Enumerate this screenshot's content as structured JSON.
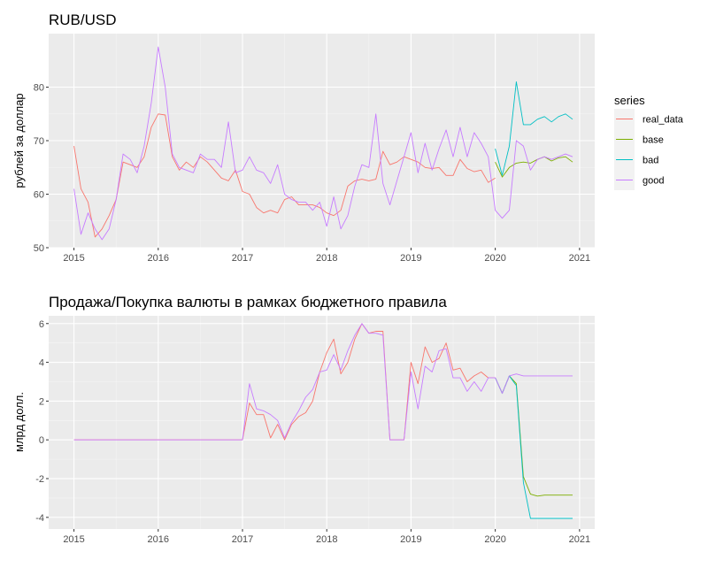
{
  "chart_data": [
    {
      "type": "line",
      "title": "RUB/USD",
      "xlabel": "",
      "ylabel": "рублей за доллар",
      "xlim": [
        2014.7,
        2021.18
      ],
      "ylim": [
        50,
        90
      ],
      "xticks": [
        2015,
        2016,
        2017,
        2018,
        2019,
        2020,
        2021
      ],
      "yticks": [
        50,
        60,
        70,
        80
      ],
      "grid": true,
      "legend": {
        "title": "series",
        "placement": "right",
        "entries": [
          {
            "label": "real_data",
            "color": "#F8766D"
          },
          {
            "label": "base",
            "color": "#7CAE00"
          },
          {
            "label": "bad",
            "color": "#00BFC4"
          },
          {
            "label": "good",
            "color": "#C77CFF"
          }
        ]
      },
      "series": [
        {
          "name": "real_data",
          "color": "#F8766D",
          "x": [
            2015.0,
            2015.083,
            2015.167,
            2015.25,
            2015.333,
            2015.417,
            2015.5,
            2015.583,
            2015.667,
            2015.75,
            2015.833,
            2015.917,
            2016.0,
            2016.083,
            2016.167,
            2016.25,
            2016.333,
            2016.417,
            2016.5,
            2016.583,
            2016.667,
            2016.75,
            2016.833,
            2016.917,
            2017.0,
            2017.083,
            2017.167,
            2017.25,
            2017.333,
            2017.417,
            2017.5,
            2017.583,
            2017.667,
            2017.75,
            2017.833,
            2017.917,
            2018.0,
            2018.083,
            2018.167,
            2018.25,
            2018.333,
            2018.417,
            2018.5,
            2018.583,
            2018.667,
            2018.75,
            2018.833,
            2018.917,
            2019.0,
            2019.083,
            2019.167,
            2019.25,
            2019.333,
            2019.417,
            2019.5,
            2019.583,
            2019.667,
            2019.75,
            2019.833,
            2019.917,
            2020.0
          ],
          "y": [
            69,
            61,
            58.5,
            52,
            53.5,
            56,
            59,
            66,
            65.5,
            65,
            67,
            72.5,
            75,
            74.8,
            67,
            64.5,
            66,
            65,
            67,
            66,
            64.5,
            63,
            62.5,
            64.5,
            60.5,
            60,
            57.5,
            56.5,
            57,
            56.5,
            59,
            59.5,
            58,
            58,
            58,
            57.5,
            56.5,
            56,
            57,
            61.5,
            62.5,
            62.8,
            62.5,
            62.8,
            68,
            65.5,
            66,
            67,
            66.5,
            66,
            65,
            64.8,
            65,
            63.5,
            63.5,
            66.5,
            64.8,
            64.2,
            64.5,
            62.2,
            63
          ]
        },
        {
          "name": "base",
          "color": "#7CAE00",
          "x": [
            2020.0,
            2020.083,
            2020.167,
            2020.25,
            2020.333,
            2020.417,
            2020.5,
            2020.583,
            2020.667,
            2020.75,
            2020.833,
            2020.917
          ],
          "y": [
            66,
            63.2,
            65,
            65.8,
            66,
            65.8,
            66.5,
            67,
            66.2,
            66.8,
            67,
            66
          ]
        },
        {
          "name": "bad",
          "color": "#00BFC4",
          "x": [
            2020.0,
            2020.083,
            2020.167,
            2020.25,
            2020.333,
            2020.417,
            2020.5,
            2020.583,
            2020.667,
            2020.75,
            2020.833,
            2020.917
          ],
          "y": [
            68.5,
            63.5,
            69,
            81,
            73,
            73,
            74,
            74.5,
            73.5,
            74.5,
            75,
            74
          ]
        },
        {
          "name": "good",
          "color": "#C77CFF",
          "x": [
            2015.0,
            2015.083,
            2015.167,
            2015.25,
            2015.333,
            2015.417,
            2015.5,
            2015.583,
            2015.667,
            2015.75,
            2015.833,
            2015.917,
            2016.0,
            2016.083,
            2016.167,
            2016.25,
            2016.333,
            2016.417,
            2016.5,
            2016.583,
            2016.667,
            2016.75,
            2016.833,
            2016.917,
            2017.0,
            2017.083,
            2017.167,
            2017.25,
            2017.333,
            2017.417,
            2017.5,
            2017.583,
            2017.667,
            2017.75,
            2017.833,
            2017.917,
            2018.0,
            2018.083,
            2018.167,
            2018.25,
            2018.333,
            2018.417,
            2018.5,
            2018.583,
            2018.667,
            2018.75,
            2018.833,
            2018.917,
            2019.0,
            2019.083,
            2019.167,
            2019.25,
            2019.333,
            2019.417,
            2019.5,
            2019.583,
            2019.667,
            2019.75,
            2019.833,
            2019.917,
            2020.0,
            2020.083,
            2020.167,
            2020.25,
            2020.333,
            2020.417,
            2020.5,
            2020.583,
            2020.667,
            2020.75,
            2020.833,
            2020.917
          ],
          "y": [
            61,
            52.5,
            56.5,
            53.5,
            51.5,
            53.5,
            59,
            67.5,
            66.5,
            64,
            69,
            77,
            87.5,
            80,
            67.5,
            65,
            64.5,
            64,
            67.5,
            66.5,
            66.5,
            65,
            73.5,
            64,
            64.5,
            67,
            64.5,
            64,
            62,
            65.5,
            60,
            59,
            58.5,
            58.5,
            57,
            58.5,
            54,
            59.5,
            53.5,
            56,
            61.5,
            65.5,
            65,
            75,
            62,
            58,
            62.5,
            67,
            71.5,
            64,
            69.5,
            64.5,
            68.5,
            72,
            67,
            72.5,
            67,
            71.5,
            69.5,
            67,
            57,
            55.5,
            57,
            70,
            69,
            64.5,
            66.5,
            67,
            66.5,
            67,
            67.5,
            67
          ]
        }
      ]
    },
    {
      "type": "line",
      "title": "Продажа/Покупка валюты в рамках бюджетного правила",
      "xlabel": "",
      "ylabel": "млрд долл.",
      "xlim": [
        2014.7,
        2021.18
      ],
      "ylim": [
        -4.6,
        6.4
      ],
      "xticks": [
        2015,
        2016,
        2017,
        2018,
        2019,
        2020,
        2021
      ],
      "yticks": [
        -4,
        -2,
        0,
        2,
        4,
        6
      ],
      "grid": true,
      "series": [
        {
          "name": "real_data",
          "color": "#F8766D",
          "x": [
            2015.0,
            2016.0,
            2017.0,
            2017.083,
            2017.167,
            2017.25,
            2017.333,
            2017.417,
            2017.5,
            2017.583,
            2017.667,
            2017.75,
            2017.833,
            2017.917,
            2018.0,
            2018.083,
            2018.167,
            2018.25,
            2018.333,
            2018.417,
            2018.5,
            2018.583,
            2018.667,
            2018.75,
            2018.833,
            2018.917,
            2019.0,
            2019.083,
            2019.167,
            2019.25,
            2019.333,
            2019.417,
            2019.5,
            2019.583,
            2019.667,
            2019.75,
            2019.833,
            2019.917,
            2020.0
          ],
          "y": [
            0,
            0,
            0,
            1.9,
            1.3,
            1.3,
            0.1,
            0.8,
            0,
            0.8,
            1.2,
            1.4,
            2,
            3.5,
            4.5,
            5.2,
            3.4,
            4,
            5.2,
            6,
            5.5,
            5.6,
            5.6,
            0,
            0,
            0,
            4,
            2.9,
            4.8,
            4,
            4.2,
            5,
            3.6,
            3.7,
            3,
            3.3,
            3.5,
            3.2,
            3.2
          ]
        },
        {
          "name": "base",
          "color": "#7CAE00",
          "x": [
            2020.0,
            2020.083,
            2020.167,
            2020.25,
            2020.333,
            2020.417,
            2020.5,
            2020.583,
            2020.667,
            2020.75,
            2020.833,
            2020.917
          ],
          "y": [
            3.2,
            2.4,
            3.3,
            2.9,
            -1.9,
            -2.8,
            -2.9,
            -2.85,
            -2.85,
            -2.85,
            -2.85,
            -2.85
          ]
        },
        {
          "name": "bad",
          "color": "#00BFC4",
          "x": [
            2020.0,
            2020.083,
            2020.167,
            2020.25,
            2020.333,
            2020.417,
            2020.5,
            2020.583,
            2020.667,
            2020.75,
            2020.833,
            2020.917
          ],
          "y": [
            3.2,
            2.4,
            3.3,
            2.8,
            -2.2,
            -4.05,
            -4.05,
            -4.05,
            -4.05,
            -4.05,
            -4.05,
            -4.05
          ]
        },
        {
          "name": "good",
          "color": "#C77CFF",
          "x": [
            2015.0,
            2016.0,
            2017.0,
            2017.083,
            2017.167,
            2017.25,
            2017.333,
            2017.417,
            2017.5,
            2017.583,
            2017.667,
            2017.75,
            2017.833,
            2017.917,
            2018.0,
            2018.083,
            2018.167,
            2018.25,
            2018.333,
            2018.417,
            2018.5,
            2018.583,
            2018.667,
            2018.75,
            2018.833,
            2018.917,
            2019.0,
            2019.083,
            2019.167,
            2019.25,
            2019.333,
            2019.417,
            2019.5,
            2019.583,
            2019.667,
            2019.75,
            2019.833,
            2019.917,
            2020.0,
            2020.083,
            2020.167,
            2020.25,
            2020.333,
            2020.417,
            2020.5,
            2020.583,
            2020.667,
            2020.75,
            2020.833,
            2020.917
          ],
          "y": [
            0,
            0,
            0,
            2.9,
            1.6,
            1.5,
            1.3,
            1,
            0.1,
            0.9,
            1.5,
            2.2,
            2.6,
            3.5,
            3.6,
            4.4,
            3.6,
            4.6,
            5.4,
            6,
            5.5,
            5.5,
            5.4,
            0,
            0,
            0,
            3.5,
            1.6,
            3.8,
            3.5,
            4.6,
            4.7,
            3.2,
            3.2,
            2.5,
            3,
            2.5,
            3.2,
            3.2,
            2.4,
            3.3,
            3.4,
            3.3,
            3.3,
            3.3,
            3.3,
            3.3,
            3.3,
            3.3,
            3.3
          ]
        }
      ]
    }
  ]
}
